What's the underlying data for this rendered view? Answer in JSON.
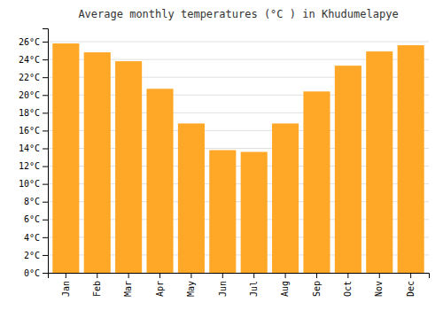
{
  "chart_data": {
    "type": "bar",
    "title": "Average monthly temperatures (°C ) in Khudumelapye",
    "categories": [
      "Jan",
      "Feb",
      "Mar",
      "Apr",
      "May",
      "Jun",
      "Jul",
      "Aug",
      "Sep",
      "Oct",
      "Nov",
      "Dec"
    ],
    "values": [
      25.8,
      24.8,
      23.8,
      20.7,
      16.8,
      13.8,
      13.6,
      16.8,
      20.4,
      23.3,
      24.9,
      25.6
    ],
    "color": "#FFA726",
    "ylim": [
      0,
      27.5
    ],
    "yticks": [
      {
        "value": 0,
        "label": "0°C"
      },
      {
        "value": 2,
        "label": "2°C"
      },
      {
        "value": 4,
        "label": "4°C"
      },
      {
        "value": 6,
        "label": "6°C"
      },
      {
        "value": 8,
        "label": "8°C"
      },
      {
        "value": 10,
        "label": "10°C"
      },
      {
        "value": 12,
        "label": "12°C"
      },
      {
        "value": 14,
        "label": "14°C"
      },
      {
        "value": 16,
        "label": "16°C"
      },
      {
        "value": 18,
        "label": "18°C"
      },
      {
        "value": 20,
        "label": "20°C"
      },
      {
        "value": 22,
        "label": "22°C"
      },
      {
        "value": 24,
        "label": "24°C"
      },
      {
        "value": 26,
        "label": "26°C"
      }
    ],
    "grid": true
  }
}
